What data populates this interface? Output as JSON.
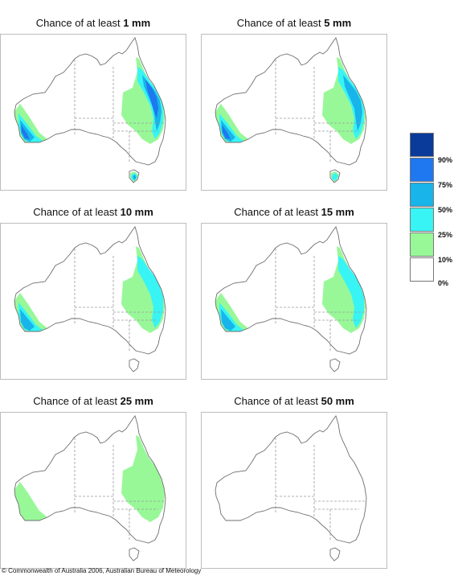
{
  "panels": [
    {
      "prefix": "Chance of at least",
      "amount": "1 mm",
      "zones": {
        "sw": 4,
        "ne": 4,
        "tas": 3
      }
    },
    {
      "prefix": "Chance of at least",
      "amount": "5 mm",
      "zones": {
        "sw": 4,
        "ne": 3,
        "tas": 2
      }
    },
    {
      "prefix": "Chance of at least",
      "amount": "10 mm",
      "zones": {
        "sw": 3,
        "ne": 2,
        "tas": 0
      }
    },
    {
      "prefix": "Chance of at least",
      "amount": "15 mm",
      "zones": {
        "sw": 3,
        "ne": 2,
        "tas": 0
      }
    },
    {
      "prefix": "Chance of at least",
      "amount": "25 mm",
      "zones": {
        "sw": 1,
        "ne": 1,
        "tas": 0
      }
    },
    {
      "prefix": "Chance of at least",
      "amount": "50 mm",
      "zones": {
        "sw": 0,
        "ne": 0,
        "tas": 0
      }
    }
  ],
  "legend": {
    "labels": [
      "90%",
      "75%",
      "50%",
      "25%",
      "10%",
      "0%"
    ],
    "colors": [
      "#0a3a9a",
      "#1f78f0",
      "#18b4ea",
      "#38f4f4",
      "#98f898",
      "#ffffff"
    ]
  },
  "copyright": "© Commonwealth of Australia 2006, Australian Bureau of Meteorology",
  "colors": {
    "border": "#bdbdbd",
    "coast": "#6e6e6e",
    "state_line": "#9a9a9a"
  }
}
